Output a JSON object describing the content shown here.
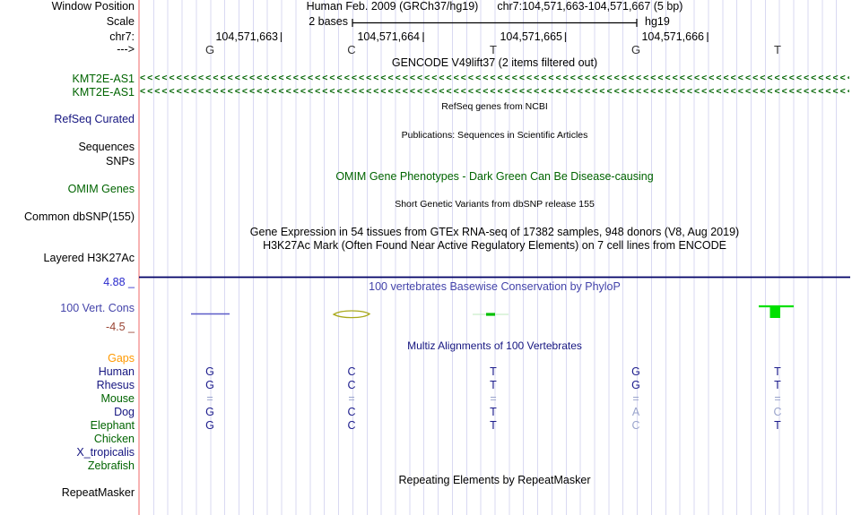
{
  "header": {
    "window_position_label": "Window Position",
    "assembly": "Human Feb. 2009 (GRCh37/hg19)",
    "range": "chr7:104,571,663-104,571,667 (5 bp)",
    "scale_label": "Scale",
    "scale_value": "2 bases",
    "genome": "hg19",
    "chrom_label": "chr7:",
    "strand_label": "--->",
    "coordinates": [
      "104,571,663",
      "104,571,664",
      "104,571,665",
      "104,571,666"
    ],
    "sequence": [
      "G",
      "C",
      "T",
      "G",
      "T"
    ]
  },
  "tracks": {
    "gencode": {
      "title": "GENCODE V49lift37 (2 items filtered out)",
      "genes": [
        "KMT2E-AS1",
        "KMT2E-AS1"
      ],
      "arrow_char": "<"
    },
    "refseq": {
      "title": "RefSeq genes from NCBI",
      "label": "RefSeq Curated"
    },
    "publications": {
      "title": "Publications: Sequences in Scientific Articles",
      "labels": [
        "Sequences",
        "SNPs"
      ]
    },
    "omim": {
      "title": "OMIM Gene Phenotypes - Dark Green Can Be Disease-causing",
      "label": "OMIM Genes"
    },
    "dbsnp": {
      "title": "Short Genetic Variants from dbSNP release 155",
      "label": "Common dbSNP(155)"
    },
    "gtex": {
      "title": "Gene Expression in 54 tissues from GTEx RNA-seq of 17382 samples, 948 donors (V8, Aug 2019)"
    },
    "h3k27ac": {
      "title": "H3K27Ac Mark (Often Found Near Active Regulatory Elements) on 7 cell lines from ENCODE",
      "label": "Layered H3K27Ac"
    },
    "conservation": {
      "title": "100 vertebrates Basewise Conservation by PhyloP",
      "label": "100 Vert. Cons",
      "max_label": "4.88 _",
      "min_label": "-4.5 _",
      "marks": [
        {
          "base": "104,571,663",
          "style": "thin blue bar near zero"
        },
        {
          "base": "104,571,664",
          "style": "olive lens outline near zero"
        },
        {
          "base": "104,571,665",
          "style": "pale green bar with short bright green dash"
        },
        {
          "base": "104,571,667",
          "style": "bright green bar with filled box"
        }
      ]
    },
    "multiz": {
      "title": "Multiz Alignments of 100 Vertebrates",
      "rows": [
        {
          "label": "Gaps",
          "lc": "orange",
          "cells": [
            "",
            "",
            "",
            "",
            ""
          ],
          "dim": [
            0,
            0,
            0,
            0,
            0
          ]
        },
        {
          "label": "Human",
          "lc": "navy",
          "cells": [
            "G",
            "C",
            "T",
            "G",
            "T"
          ],
          "dim": [
            0,
            0,
            0,
            0,
            0
          ]
        },
        {
          "label": "Rhesus",
          "lc": "navy",
          "cells": [
            "G",
            "C",
            "T",
            "G",
            "T"
          ],
          "dim": [
            0,
            0,
            0,
            0,
            0
          ]
        },
        {
          "label": "Mouse",
          "lc": "green",
          "cells": [
            "=",
            "=",
            "=",
            "=",
            "="
          ],
          "dim": [
            1,
            1,
            1,
            1,
            1
          ]
        },
        {
          "label": "Dog",
          "lc": "navy",
          "cells": [
            "G",
            "C",
            "T",
            "A",
            "C"
          ],
          "dim": [
            0,
            0,
            0,
            1,
            1
          ]
        },
        {
          "label": "Elephant",
          "lc": "green",
          "cells": [
            "G",
            "C",
            "T",
            "C",
            "T"
          ],
          "dim": [
            0,
            0,
            0,
            1,
            0
          ]
        },
        {
          "label": "Chicken",
          "lc": "green",
          "cells": [
            "",
            "",
            "",
            "",
            ""
          ],
          "dim": [
            0,
            0,
            0,
            0,
            0
          ]
        },
        {
          "label": "X_tropicalis",
          "lc": "navy",
          "cells": [
            "",
            "",
            "",
            "",
            ""
          ],
          "dim": [
            0,
            0,
            0,
            0,
            0
          ]
        },
        {
          "label": "Zebrafish",
          "lc": "green",
          "cells": [
            "",
            "",
            "",
            "",
            ""
          ],
          "dim": [
            0,
            0,
            0,
            0,
            0
          ]
        }
      ]
    },
    "repeatmasker": {
      "title": "Repeating Elements by RepeatMasker",
      "label": "RepeatMasker"
    }
  },
  "colors": {
    "track_green": "#006400",
    "navy": "#151580",
    "gaps_orange": "#ff9900",
    "cons_blue_mark": "#5c5cc8",
    "cons_olive_mark": "#a8a818",
    "cons_green_mark": "#00dd00",
    "grid_line": "#d9d9f2",
    "position_marker": "#f7b3b3",
    "scale_max_blue": "#2828cc",
    "scale_min_maroon": "#994433"
  }
}
